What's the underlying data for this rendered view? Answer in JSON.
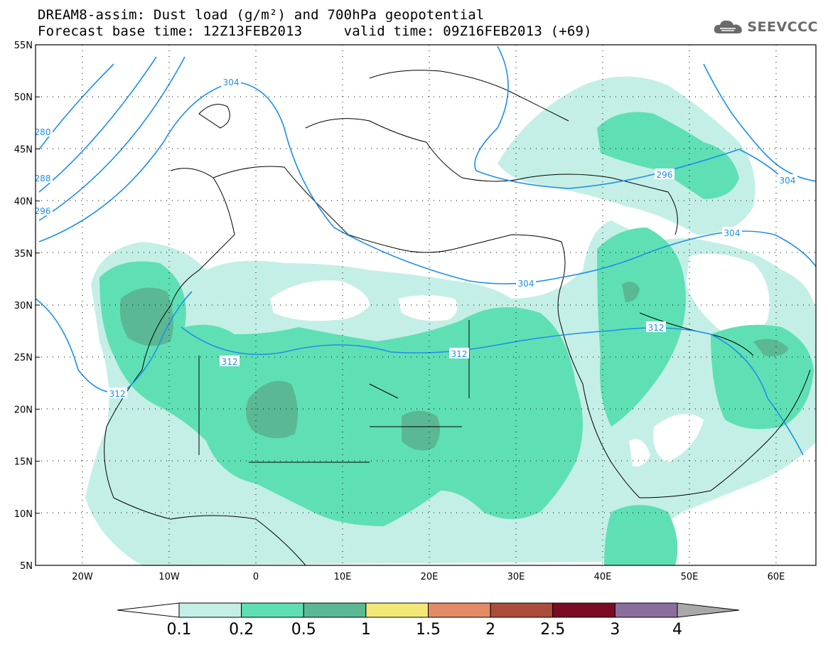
{
  "header": {
    "title_line1": "DREAM8-assim: Dust load (g/m²) and 700hPa geopotential",
    "title_line2": "Forecast base time: 12Z13FEB2013     valid time: 09Z16FEB2013 (+69)",
    "logo_text": "SEEVCCC"
  },
  "map": {
    "lat_labels": [
      "55N",
      "50N",
      "45N",
      "40N",
      "35N",
      "30N",
      "25N",
      "20N",
      "15N",
      "10N",
      "5N"
    ],
    "lon_labels": [
      "20W",
      "10W",
      "0",
      "10E",
      "20E",
      "30E",
      "40E",
      "50E",
      "60E"
    ],
    "contour_labels": [
      "304",
      "304",
      "304",
      "304",
      "296",
      "312",
      "312",
      "312",
      "312",
      "280",
      "288",
      "296"
    ]
  },
  "legend": {
    "colors": [
      "#ffffff",
      "#c4efe6",
      "#5fe0b4",
      "#5ab894",
      "#f2e878",
      "#e58a66",
      "#ad4c3a",
      "#7c0c24",
      "#8c6e9e",
      "#a9a9a9"
    ],
    "labels": [
      "0.1",
      "0.2",
      "0.5",
      "1",
      "1.5",
      "2",
      "2.5",
      "3",
      "4"
    ]
  }
}
